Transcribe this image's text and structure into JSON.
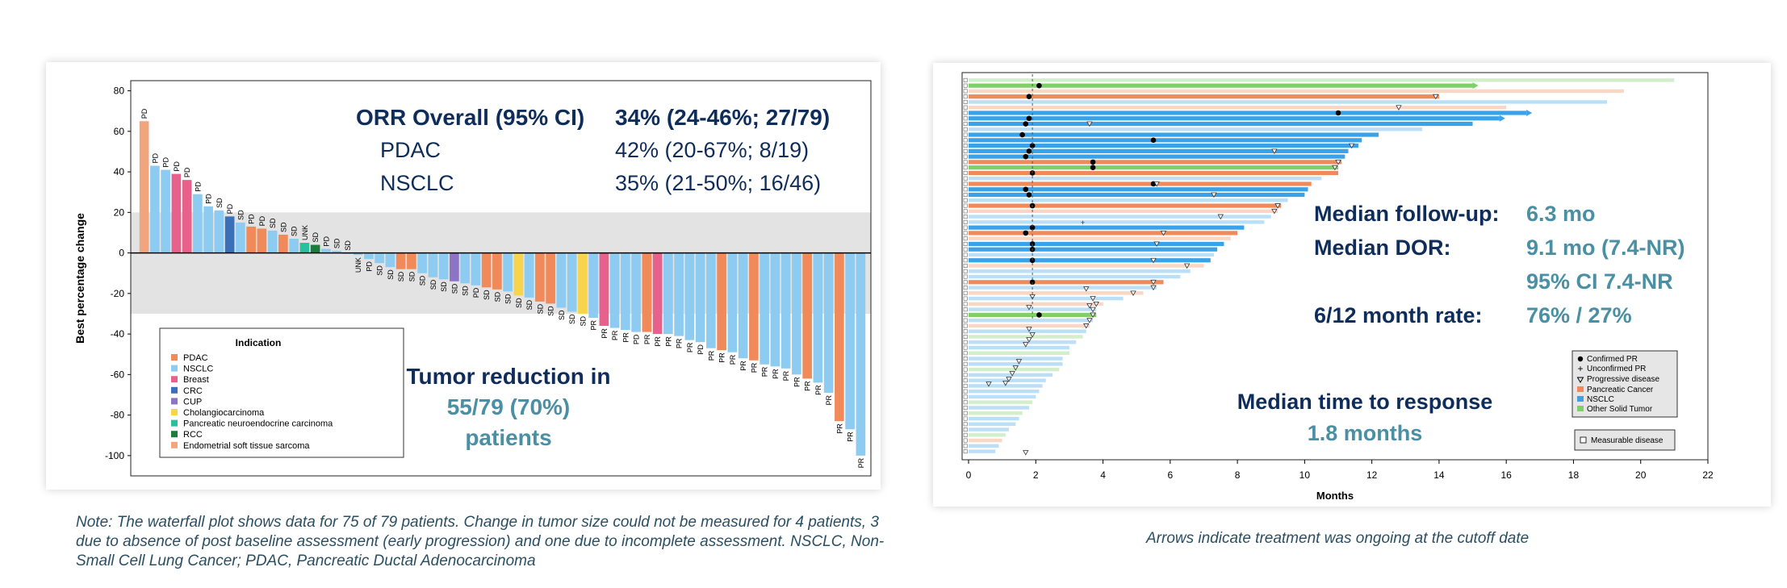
{
  "left_chart": {
    "ylabel": "Best percentage change",
    "yticks": [
      "80",
      "60",
      "40",
      "20",
      "0",
      "-20",
      "-40",
      "-60",
      "-80",
      "-100"
    ],
    "ylim": [
      -110,
      85
    ],
    "shaded_band": [
      -30,
      20
    ],
    "legend_title": "Indication",
    "orr": {
      "header_label": "ORR Overall (95% CI)",
      "header_value": "34% (24-46%; 27/79)",
      "rows": [
        {
          "label": "PDAC",
          "value": "42% (20-67%; 8/19)"
        },
        {
          "label": "NSCLC",
          "value": "35% (21-50%; 16/46)"
        }
      ]
    },
    "tumor_text": {
      "line1": "Tumor reduction in",
      "line2": "55/79 (70%)",
      "line3": "patients"
    }
  },
  "right_chart": {
    "xlabel": "Months",
    "xticks": [
      "0",
      "2",
      "4",
      "6",
      "8",
      "10",
      "12",
      "14",
      "16",
      "18",
      "20",
      "22"
    ],
    "stats": [
      {
        "label": "Median follow-up:",
        "value": "6.3 mo"
      },
      {
        "label": "Median DOR:",
        "value": "9.1 mo (7.4-NR)"
      },
      {
        "label": "",
        "value": "95% CI 7.4-NR"
      },
      {
        "label": "6/12 month rate:",
        "value": "76% / 27%"
      }
    ],
    "median_time": {
      "line1": "Median time to response",
      "line2": "1.8 months"
    },
    "legend": [
      "Confirmed PR",
      "Unconfirmed PR",
      "Progressive disease",
      "Pancreatic Cancer",
      "NSCLC",
      "Other Solid Tumor"
    ],
    "legend2": "Measurable disease"
  },
  "colors": {
    "PDAC": "#f08a5a",
    "NSCLC": "#8ecbf0",
    "Breast": "#e8608c",
    "CRC": "#3a6fba",
    "CUP": "#8d73c6",
    "Cholangiocarcinoma": "#f6d54c",
    "PNEC": "#2bbf9e",
    "RCC": "#1a7d3c",
    "Endometrial": "#f0a57e",
    "swim_pancreatic": "#f08a5a",
    "swim_nsclc": "#3aa2e8",
    "swim_other": "#7fcf6a",
    "navy": "#0f2d5a",
    "teal": "#4a8fa3"
  },
  "chart_data": [
    {
      "type": "bar",
      "title": "",
      "xlabel": "",
      "ylabel": "Best percentage change",
      "ylim": [
        -110,
        85
      ],
      "legend_placement": "bottom-left",
      "legend": [
        {
          "key": "PDAC",
          "label": "PDAC"
        },
        {
          "key": "NSCLC",
          "label": "NSCLC"
        },
        {
          "key": "Breast",
          "label": "Breast"
        },
        {
          "key": "CRC",
          "label": "CRC"
        },
        {
          "key": "CUP",
          "label": "CUP"
        },
        {
          "key": "Cholangiocarcinoma",
          "label": "Cholangiocarcinoma"
        },
        {
          "key": "PNEC",
          "label": "Pancreatic neuroendocrine carcinoma"
        },
        {
          "key": "RCC",
          "label": "RCC"
        },
        {
          "key": "Endometrial",
          "label": "Endometrial soft tissue sarcoma"
        }
      ],
      "bars": [
        {
          "v": 65,
          "c": "Endometrial",
          "l": "PD"
        },
        {
          "v": 43,
          "c": "NSCLC",
          "l": "PD"
        },
        {
          "v": 41,
          "c": "NSCLC",
          "l": "PD"
        },
        {
          "v": 39,
          "c": "Breast",
          "l": "PD"
        },
        {
          "v": 36,
          "c": "Breast",
          "l": "PD"
        },
        {
          "v": 29,
          "c": "NSCLC",
          "l": "PD"
        },
        {
          "v": 23,
          "c": "NSCLC",
          "l": "PD"
        },
        {
          "v": 21,
          "c": "NSCLC",
          "l": "SD"
        },
        {
          "v": 18,
          "c": "CRC",
          "l": "PD"
        },
        {
          "v": 15,
          "c": "NSCLC",
          "l": "SD"
        },
        {
          "v": 13,
          "c": "PDAC",
          "l": "PD"
        },
        {
          "v": 12,
          "c": "PDAC",
          "l": "PD"
        },
        {
          "v": 11,
          "c": "NSCLC",
          "l": "SD"
        },
        {
          "v": 9,
          "c": "PDAC",
          "l": "SD"
        },
        {
          "v": 7,
          "c": "NSCLC",
          "l": "SD"
        },
        {
          "v": 5,
          "c": "PNEC",
          "l": "UNK"
        },
        {
          "v": 4,
          "c": "RCC",
          "l": "SD"
        },
        {
          "v": 2,
          "c": "NSCLC",
          "l": "PD"
        },
        {
          "v": 1,
          "c": "NSCLC",
          "l": "SD"
        },
        {
          "v": 0,
          "c": "NSCLC",
          "l": "SD"
        },
        {
          "v": -1,
          "c": "NSCLC",
          "l": "UNK"
        },
        {
          "v": -3,
          "c": "NSCLC",
          "l": "PD"
        },
        {
          "v": -5,
          "c": "NSCLC",
          "l": "SD"
        },
        {
          "v": -7,
          "c": "NSCLC",
          "l": "SD"
        },
        {
          "v": -8,
          "c": "PDAC",
          "l": "SD"
        },
        {
          "v": -8,
          "c": "PDAC",
          "l": "SD"
        },
        {
          "v": -10,
          "c": "NSCLC",
          "l": "SD"
        },
        {
          "v": -12,
          "c": "NSCLC",
          "l": "SD"
        },
        {
          "v": -13,
          "c": "NSCLC",
          "l": "SD"
        },
        {
          "v": -14,
          "c": "CUP",
          "l": "SD"
        },
        {
          "v": -15,
          "c": "NSCLC",
          "l": "SD"
        },
        {
          "v": -16,
          "c": "NSCLC",
          "l": "PD"
        },
        {
          "v": -17,
          "c": "PDAC",
          "l": "SD"
        },
        {
          "v": -18,
          "c": "PDAC",
          "l": "SD"
        },
        {
          "v": -19,
          "c": "NSCLC",
          "l": "SD"
        },
        {
          "v": -21,
          "c": "Cholangiocarcinoma",
          "l": "SD"
        },
        {
          "v": -22,
          "c": "NSCLC",
          "l": "SD"
        },
        {
          "v": -24,
          "c": "PDAC",
          "l": "SD"
        },
        {
          "v": -25,
          "c": "PDAC",
          "l": "SD"
        },
        {
          "v": -27,
          "c": "NSCLC",
          "l": "SD"
        },
        {
          "v": -29,
          "c": "NSCLC",
          "l": "SD"
        },
        {
          "v": -30,
          "c": "Cholangiocarcinoma",
          "l": "SD"
        },
        {
          "v": -32,
          "c": "NSCLC",
          "l": "PR"
        },
        {
          "v": -36,
          "c": "Breast",
          "l": "PR"
        },
        {
          "v": -37,
          "c": "NSCLC",
          "l": "PR"
        },
        {
          "v": -38,
          "c": "NSCLC",
          "l": "PR"
        },
        {
          "v": -39,
          "c": "NSCLC",
          "l": "PD"
        },
        {
          "v": -39,
          "c": "PDAC",
          "l": "PR"
        },
        {
          "v": -40,
          "c": "Breast",
          "l": "PR"
        },
        {
          "v": -40,
          "c": "NSCLC",
          "l": "PR"
        },
        {
          "v": -41,
          "c": "NSCLC",
          "l": "PR"
        },
        {
          "v": -43,
          "c": "NSCLC",
          "l": "PR"
        },
        {
          "v": -44,
          "c": "NSCLC",
          "l": "PD"
        },
        {
          "v": -47,
          "c": "NSCLC",
          "l": "PR"
        },
        {
          "v": -48,
          "c": "PDAC",
          "l": "PR"
        },
        {
          "v": -49,
          "c": "NSCLC",
          "l": "PR"
        },
        {
          "v": -52,
          "c": "NSCLC",
          "l": "PR"
        },
        {
          "v": -53,
          "c": "PDAC",
          "l": "PR"
        },
        {
          "v": -55,
          "c": "NSCLC",
          "l": "PR"
        },
        {
          "v": -56,
          "c": "NSCLC",
          "l": "PR"
        },
        {
          "v": -57,
          "c": "NSCLC",
          "l": "PR"
        },
        {
          "v": -60,
          "c": "NSCLC",
          "l": "PR"
        },
        {
          "v": -62,
          "c": "PDAC",
          "l": "PR"
        },
        {
          "v": -64,
          "c": "NSCLC",
          "l": "PR"
        },
        {
          "v": -69,
          "c": "NSCLC",
          "l": "PR"
        },
        {
          "v": -83,
          "c": "PDAC",
          "l": "PR"
        },
        {
          "v": -87,
          "c": "NSCLC",
          "l": "PR"
        },
        {
          "v": -100,
          "c": "NSCLC",
          "l": "PR"
        }
      ]
    },
    {
      "type": "bar",
      "subtype": "swimmer",
      "title": "",
      "xlabel": "Months",
      "ylabel": "",
      "xlim": [
        0,
        22
      ],
      "legend_placement": "bottom-right",
      "rows": [
        {
          "e": 21.0,
          "c": "other",
          "bold": false
        },
        {
          "e": 15.0,
          "c": "other",
          "bold": true,
          "resp": 2.1,
          "arrow": true
        },
        {
          "e": 19.5,
          "c": "pancreatic",
          "bold": false
        },
        {
          "e": 14.0,
          "c": "pancreatic",
          "bold": true,
          "resp": 1.8,
          "pd": 13.9
        },
        {
          "e": 19.0,
          "c": "nsclc",
          "bold": false
        },
        {
          "e": 16.0,
          "c": "pancreatic",
          "bold": false,
          "pd": 12.8
        },
        {
          "e": 16.6,
          "c": "nsclc",
          "bold": true,
          "resp": 11.0,
          "arrow": true
        },
        {
          "e": 15.8,
          "c": "nsclc",
          "bold": true,
          "resp": 1.8,
          "arrow": true
        },
        {
          "e": 15.0,
          "c": "nsclc",
          "bold": true,
          "resp": 1.7,
          "pd": 3.6
        },
        {
          "e": 13.5,
          "c": "nsclc",
          "bold": false
        },
        {
          "e": 12.2,
          "c": "nsclc",
          "bold": true,
          "resp": 1.6
        },
        {
          "e": 11.7,
          "c": "nsclc",
          "bold": true,
          "resp": 5.5
        },
        {
          "e": 11.6,
          "c": "nsclc",
          "bold": true,
          "resp": 1.9,
          "pd": 11.4
        },
        {
          "e": 11.3,
          "c": "nsclc",
          "bold": true,
          "resp": 1.8,
          "pd": 9.1
        },
        {
          "e": 11.2,
          "c": "nsclc",
          "bold": true,
          "resp": 1.7
        },
        {
          "e": 11.1,
          "c": "pancreatic",
          "bold": true,
          "resp": 3.7,
          "pd": 11.0
        },
        {
          "e": 11.0,
          "c": "other",
          "bold": true,
          "resp": 3.7,
          "pd": 10.9
        },
        {
          "e": 11.0,
          "c": "pancreatic",
          "bold": true,
          "resp": 1.9
        },
        {
          "e": 10.5,
          "c": "nsclc",
          "bold": false
        },
        {
          "e": 10.2,
          "c": "pancreatic",
          "bold": true,
          "resp": 5.5,
          "pd": 5.6
        },
        {
          "e": 10.1,
          "c": "nsclc",
          "bold": true,
          "resp": 1.7
        },
        {
          "e": 10.0,
          "c": "nsclc",
          "bold": true,
          "resp": 1.8,
          "pd": 7.3
        },
        {
          "e": 9.5,
          "c": "nsclc",
          "bold": false
        },
        {
          "e": 9.3,
          "c": "pancreatic",
          "bold": true,
          "resp": 1.9,
          "pd": 9.2
        },
        {
          "e": 9.2,
          "c": "pancreatic",
          "bold": false,
          "pd": 9.1
        },
        {
          "e": 9.0,
          "c": "nsclc",
          "bold": false,
          "pd": 7.5
        },
        {
          "e": 8.8,
          "c": "nsclc",
          "bold": false,
          "unc": 3.4
        },
        {
          "e": 8.2,
          "c": "nsclc",
          "bold": true,
          "resp": 1.9
        },
        {
          "e": 8.0,
          "c": "pancreatic",
          "bold": true,
          "resp": 1.7,
          "pd": 5.8
        },
        {
          "e": 7.8,
          "c": "pancreatic",
          "bold": false
        },
        {
          "e": 7.6,
          "c": "nsclc",
          "bold": true,
          "resp": 1.9,
          "pd": 5.6
        },
        {
          "e": 7.4,
          "c": "nsclc",
          "bold": true,
          "resp": 1.9
        },
        {
          "e": 7.3,
          "c": "nsclc",
          "bold": false
        },
        {
          "e": 7.2,
          "c": "nsclc",
          "bold": true,
          "resp": 1.9,
          "pd": 5.5
        },
        {
          "e": 7.0,
          "c": "pancreatic",
          "bold": false,
          "pd": 6.5
        },
        {
          "e": 6.6,
          "c": "nsclc",
          "bold": false
        },
        {
          "e": 6.3,
          "c": "nsclc",
          "bold": false
        },
        {
          "e": 5.8,
          "c": "pancreatic",
          "bold": true,
          "resp": 1.9,
          "pd": 5.5
        },
        {
          "e": 5.6,
          "c": "nsclc",
          "bold": false,
          "pd": 5.5
        },
        {
          "e": 5.2,
          "c": "pancreatic",
          "bold": false,
          "pd": 4.9
        },
        {
          "e": 4.6,
          "c": "nsclc",
          "bold": false
        },
        {
          "e": 4.0,
          "c": "pancreatic",
          "bold": false,
          "pd": 3.8
        },
        {
          "e": 3.8,
          "c": "nsclc",
          "bold": false,
          "pd": 3.7
        },
        {
          "e": 3.8,
          "c": "other",
          "bold": true,
          "resp": 2.1,
          "pd": 3.7
        },
        {
          "e": 3.7,
          "c": "nsclc",
          "bold": false,
          "pd": 3.6
        },
        {
          "e": 3.6,
          "c": "pancreatic",
          "bold": false,
          "pd": 3.5
        },
        {
          "e": 3.5,
          "c": "nsclc",
          "bold": false
        },
        {
          "e": 3.4,
          "c": "other",
          "bold": false
        },
        {
          "e": 3.2,
          "c": "nsclc",
          "bold": false
        },
        {
          "e": 3.0,
          "c": "nsclc",
          "bold": false
        },
        {
          "e": 3.0,
          "c": "other",
          "bold": false
        },
        {
          "e": 2.8,
          "c": "nsclc",
          "bold": false
        },
        {
          "e": 2.8,
          "c": "nsclc",
          "bold": false
        },
        {
          "e": 2.7,
          "c": "other",
          "bold": false
        },
        {
          "e": 2.5,
          "c": "nsclc",
          "bold": false
        },
        {
          "e": 2.3,
          "c": "nsclc",
          "bold": false
        },
        {
          "e": 2.2,
          "c": "nsclc",
          "bold": false
        },
        {
          "e": 2.1,
          "c": "nsclc",
          "bold": false
        },
        {
          "e": 2.0,
          "c": "nsclc",
          "bold": false
        },
        {
          "e": 1.9,
          "c": "other",
          "bold": false
        },
        {
          "e": 1.8,
          "c": "nsclc",
          "bold": false
        },
        {
          "e": 1.6,
          "c": "other",
          "bold": false
        },
        {
          "e": 1.5,
          "c": "nsclc",
          "bold": false
        },
        {
          "e": 1.4,
          "c": "nsclc",
          "bold": false
        },
        {
          "e": 1.2,
          "c": "nsclc",
          "bold": false
        },
        {
          "e": 1.1,
          "c": "other",
          "bold": false
        },
        {
          "e": 1.0,
          "c": "pancreatic",
          "bold": false
        },
        {
          "e": 0.9,
          "c": "nsclc",
          "bold": false
        },
        {
          "e": 0.8,
          "c": "nsclc",
          "bold": false
        }
      ]
    }
  ]
}
